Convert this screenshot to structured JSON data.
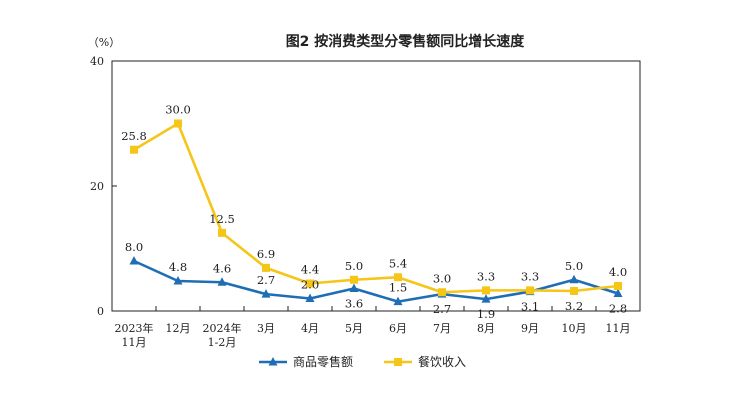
{
  "chart_data": {
    "type": "line",
    "title": "图2  按消费类型分零售额同比增长速度",
    "ylabel": "（%）",
    "ylim": [
      0,
      40
    ],
    "yticks": [
      0,
      20,
      40
    ],
    "categories": [
      [
        "2023年",
        "11月"
      ],
      [
        "12月"
      ],
      [
        "2024年",
        "1-2月"
      ],
      [
        "3月"
      ],
      [
        "4月"
      ],
      [
        "5月"
      ],
      [
        "6月"
      ],
      [
        "7月"
      ],
      [
        "8月"
      ],
      [
        "9月"
      ],
      [
        "10月"
      ],
      [
        "11月"
      ]
    ],
    "series": [
      {
        "name": "商品零售额",
        "color": "#1f6eb5",
        "marker": "triangle",
        "values": [
          8.0,
          4.8,
          4.6,
          2.7,
          2.0,
          3.6,
          1.5,
          2.7,
          1.9,
          3.1,
          5.0,
          2.8
        ],
        "labels": [
          "8.0",
          "4.8",
          "4.6",
          "2.7",
          "2.0",
          "3.6",
          "1.5",
          "2.7",
          "1.9",
          "3.1",
          "5.0",
          "2.8"
        ],
        "label_pos": [
          "above",
          "above",
          "above",
          "above",
          "above",
          "below",
          "above",
          "below",
          "below",
          "below",
          "above",
          "below"
        ]
      },
      {
        "name": "餐饮收入",
        "color": "#f5c518",
        "marker": "square",
        "values": [
          25.8,
          30.0,
          12.5,
          6.9,
          4.4,
          5.0,
          5.4,
          3.0,
          3.3,
          3.3,
          3.2,
          4.0
        ],
        "labels": [
          "25.8",
          "30.0",
          "12.5",
          "6.9",
          "4.4",
          "5.0",
          "5.4",
          "3.0",
          "3.3",
          "3.3",
          "3.2",
          "4.0"
        ],
        "label_pos": [
          "above",
          "above",
          "above",
          "above",
          "above",
          "above",
          "above",
          "above",
          "above",
          "above",
          "below",
          "above"
        ]
      }
    ],
    "legend_position": "bottom",
    "grid": false
  }
}
